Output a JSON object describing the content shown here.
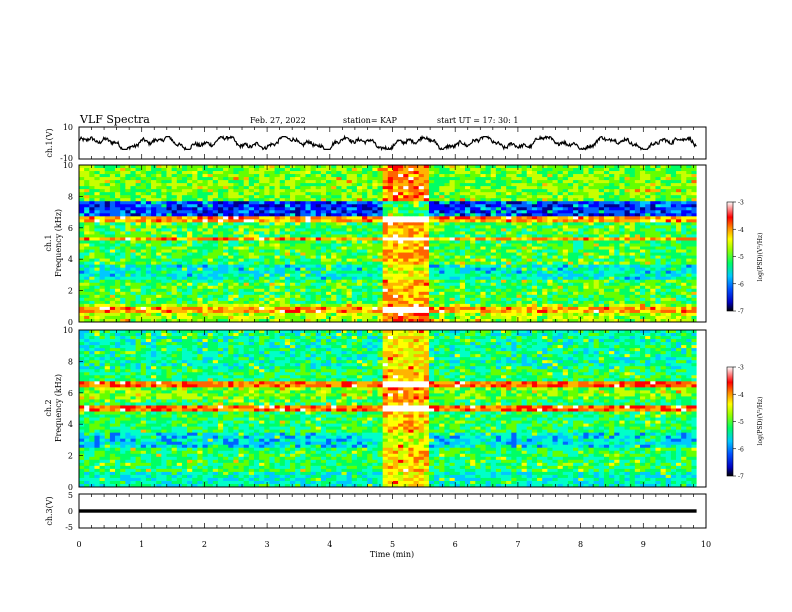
{
  "header": {
    "title": "VLF Spectra",
    "date": "Feb. 27, 2022",
    "station": "station= KAP",
    "start": "start  UT =   17: 30: 1"
  },
  "chart_data": [
    {
      "panel": "ch1-waveform",
      "type": "line",
      "ylabel": "ch.1(V)",
      "ylim": [
        -10,
        10
      ],
      "yticks": [
        "10",
        "-10"
      ],
      "xlim": [
        0,
        10
      ],
      "trace_extent_min": [
        0,
        9.85
      ],
      "trace_color": "#000000",
      "description_values": {
        "approx_range_V": [
          -4,
          4
        ]
      }
    },
    {
      "panel": "ch1-spectrogram",
      "type": "heatmap",
      "ylabel": "ch.1\nFrequency (kHz)",
      "ylabel_line1": "ch.1",
      "ylabel_line2": "Frequency (kHz)",
      "ylim": [
        0,
        10
      ],
      "yticks": [
        "0",
        "2",
        "4",
        "6",
        "8",
        "10"
      ],
      "xlim": [
        0,
        10
      ],
      "data_extent_min": [
        0,
        9.85
      ],
      "burst_interval_min": [
        4.88,
        5.55
      ],
      "colorbar": {
        "label": "log(PSD)(V²/Hz)",
        "range": [
          -7,
          -3
        ],
        "ticks": [
          "-3",
          "-4",
          "-5",
          "-6",
          "-7"
        ]
      }
    },
    {
      "panel": "ch2-spectrogram",
      "type": "heatmap",
      "ylabel": "ch.2\nFrequency (kHz)",
      "ylabel_line1": "ch.2",
      "ylabel_line2": "Frequency (kHz)",
      "ylim": [
        0,
        10
      ],
      "yticks": [
        "0",
        "2",
        "4",
        "6",
        "8",
        "10"
      ],
      "xlim": [
        0,
        10
      ],
      "data_extent_min": [
        0,
        9.85
      ],
      "burst_interval_min": [
        4.88,
        5.55
      ],
      "colorbar": {
        "label": "log(PSD)(V²/Hz)",
        "range": [
          -7,
          -3
        ],
        "ticks": [
          "-3",
          "-4",
          "-5",
          "-6",
          "-7"
        ]
      }
    },
    {
      "panel": "ch3-waveform",
      "type": "line",
      "ylabel": "ch.3(V)",
      "ylim": [
        -5,
        5
      ],
      "yticks": [
        "5",
        "0",
        "-5"
      ],
      "xlim": [
        0,
        10
      ],
      "level_V": [
        -0.5,
        0.5
      ],
      "trace_color": "#000000"
    }
  ],
  "xaxis": {
    "label": "Time  (min)",
    "ticks": [
      "0",
      "1",
      "2",
      "3",
      "4",
      "5",
      "6",
      "7",
      "8",
      "9",
      "10"
    ]
  },
  "colors": {
    "colormap": [
      "#00008c",
      "#0000ff",
      "#0064ff",
      "#00c8ff",
      "#00ffc8",
      "#00ff64",
      "#64ff00",
      "#c8ff00",
      "#ffff00",
      "#ffb400",
      "#ff6400",
      "#ff0000",
      "#ffffff"
    ]
  }
}
